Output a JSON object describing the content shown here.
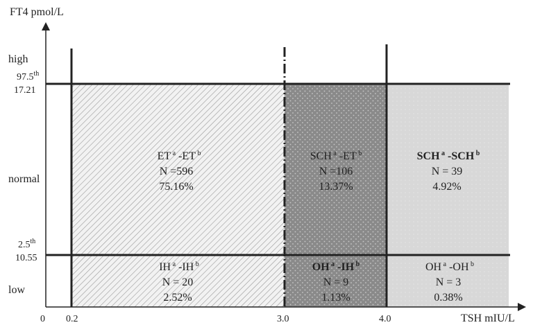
{
  "y_axis": {
    "title": "FT4 pmol/L",
    "bands": {
      "high": "high",
      "normal": "normal",
      "low": "low"
    },
    "upper_percentile": {
      "num": "97.5",
      "sup": "th"
    },
    "upper_value": "17.21",
    "lower_percentile": {
      "num": "2.5",
      "sup": "th"
    },
    "lower_value": "10.55"
  },
  "x_axis": {
    "title": "TSH mIU/L",
    "origin": "0",
    "ticks": [
      "0.2",
      "3.0",
      "4.0"
    ]
  },
  "cells": {
    "et_et": {
      "a": "ET",
      "b": "-ET",
      "n": "N =596",
      "pct": "75.16%"
    },
    "sch_et": {
      "a": "SCH",
      "b": "-ET",
      "n": "N =106",
      "pct": "13.37%"
    },
    "sch_sch": {
      "a": "SCH",
      "b": "-SCH",
      "n": "N = 39",
      "pct": "4.92%"
    },
    "ih_ih": {
      "a": "IH",
      "b": "-IH",
      "n": "N = 20",
      "pct": "2.52%"
    },
    "oh_ih": {
      "a": "OH",
      "b": "-IH",
      "n": "N = 9",
      "pct": "1.13%"
    },
    "oh_oh": {
      "a": "OH",
      "b": "-OH",
      "n": "N = 3",
      "pct": "0.38%"
    }
  },
  "superscripts": {
    "a": "a",
    "b": "b"
  },
  "colors": {
    "hatch_fill": "#f2f2f2",
    "hatch_line": "#9a9a9a",
    "dark_fill": "#8a8a8a",
    "light_fill": "#d8d8d8",
    "line": "#222222"
  }
}
